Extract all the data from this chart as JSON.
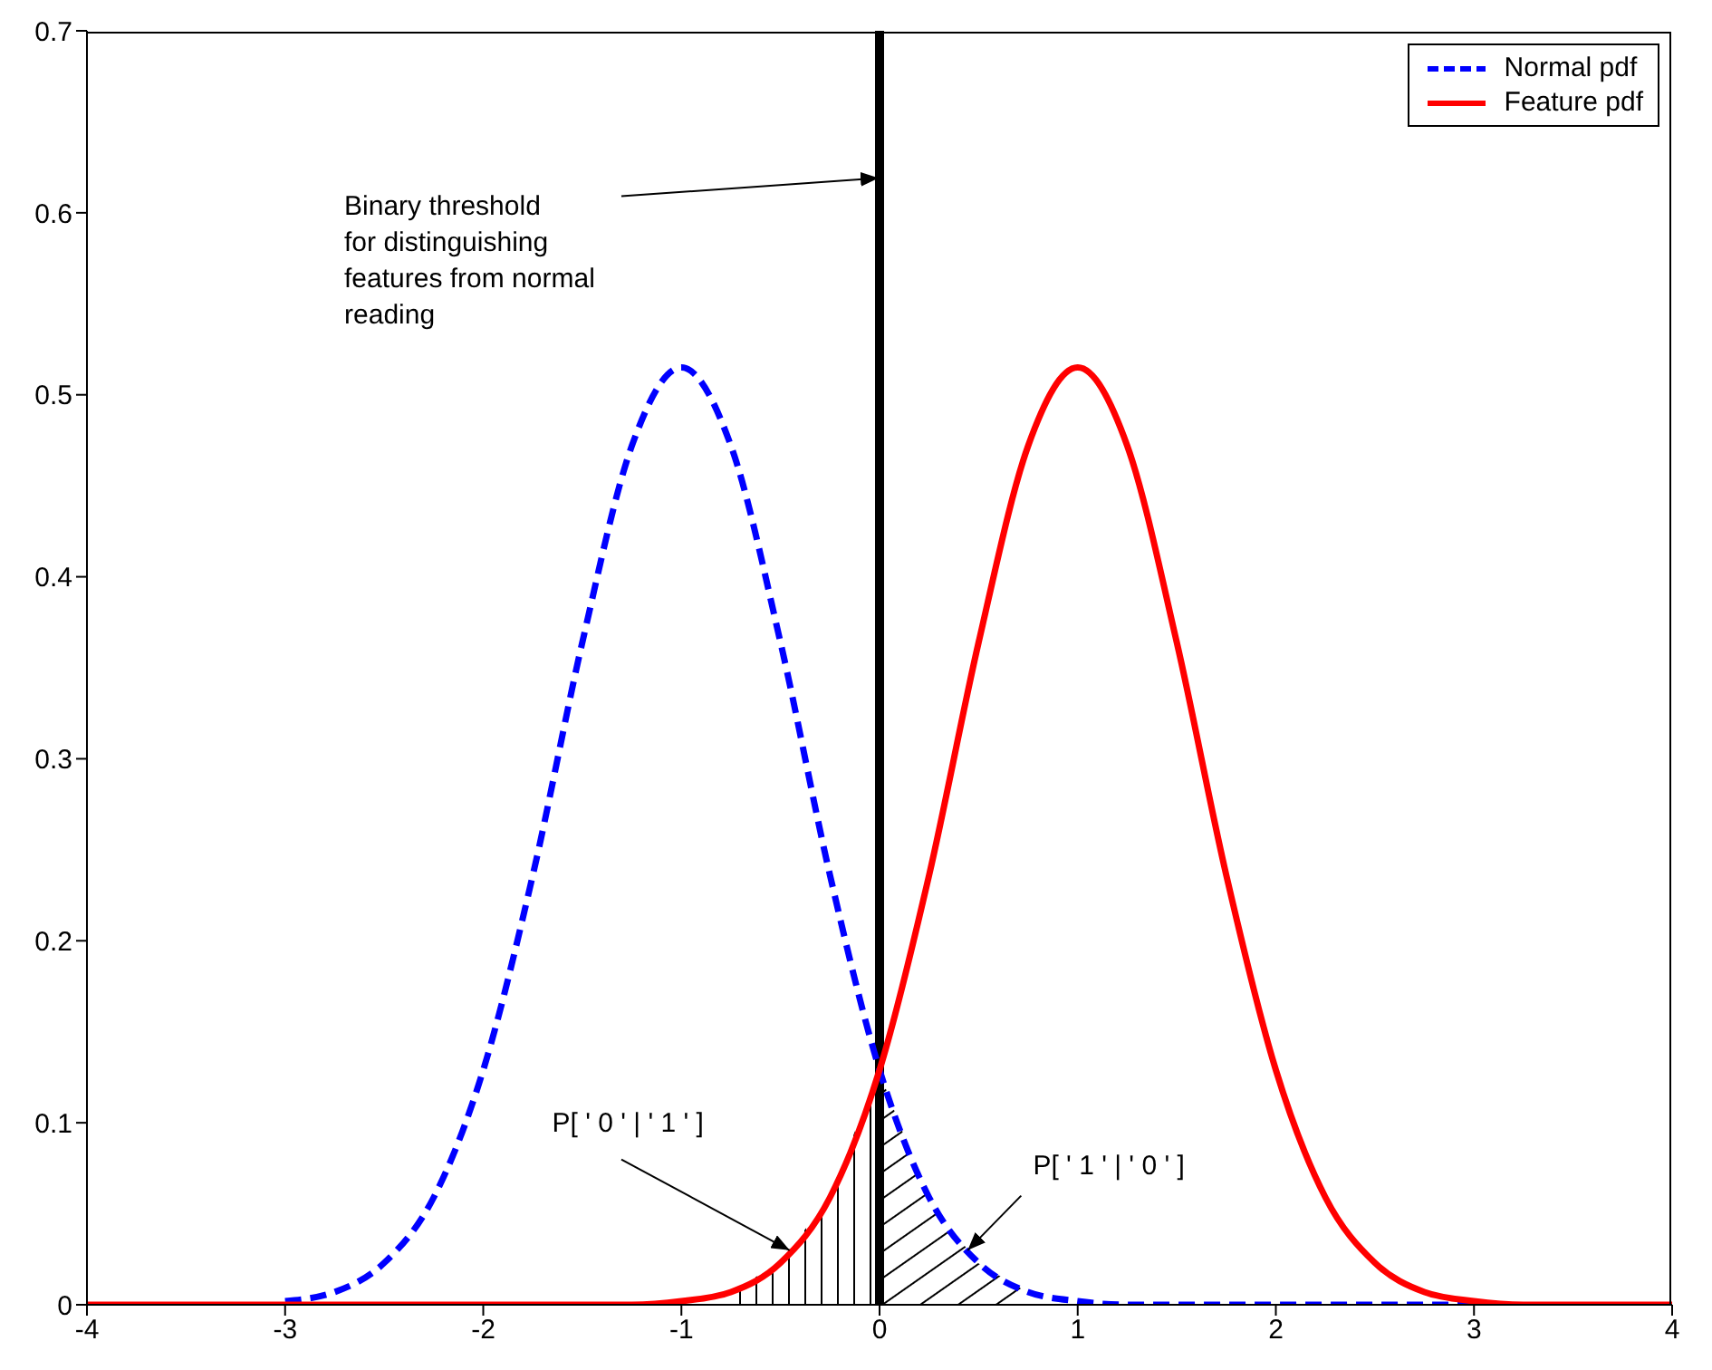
{
  "chart_data": {
    "type": "line",
    "x": [
      -4,
      -3.75,
      -3.5,
      -3.25,
      -3,
      -2.75,
      -2.5,
      -2.25,
      -2,
      -1.75,
      -1.5,
      -1.25,
      -1,
      -0.75,
      -0.5,
      -0.25,
      0,
      0.25,
      0.5,
      0.75,
      1,
      1.25,
      1.5,
      1.75,
      2,
      2.25,
      2.5,
      2.75,
      3,
      3.25,
      3.5,
      3.75,
      4
    ],
    "series": [
      {
        "name": "Normal pdf",
        "color": "#0000ff",
        "line_style": "dashed",
        "values": [
          null,
          null,
          null,
          null,
          0.002,
          0.007,
          0.023,
          0.059,
          0.129,
          0.236,
          0.364,
          0.472,
          0.515,
          0.472,
          0.364,
          0.236,
          0.129,
          0.059,
          0.023,
          0.007,
          0.002,
          0,
          0,
          0,
          0,
          0,
          0,
          0,
          0,
          null,
          null,
          null,
          null
        ]
      },
      {
        "name": "Feature pdf",
        "color": "#ff0000",
        "line_style": "solid",
        "values": [
          0,
          0,
          0,
          0,
          0,
          0,
          0,
          0,
          0,
          0,
          0,
          0,
          0.002,
          0.007,
          0.023,
          0.059,
          0.129,
          0.236,
          0.364,
          0.472,
          0.515,
          0.472,
          0.364,
          0.236,
          0.129,
          0.059,
          0.023,
          0.007,
          0.002,
          0,
          0,
          0,
          0
        ]
      }
    ],
    "xlim": [
      -4,
      4
    ],
    "xticks": [
      -4,
      -3,
      -2,
      -1,
      0,
      1,
      2,
      3,
      4
    ],
    "ylim": [
      0,
      0.7
    ],
    "yticks": [
      0,
      0.1,
      0.2,
      0.3,
      0.4,
      0.5,
      0.6,
      0.7
    ],
    "ref_lines": [
      {
        "axis": "x",
        "value": 0,
        "color": "#000000"
      }
    ],
    "annotations": [
      {
        "text": "Binary threshold\nfor distinguishing\nfeatures from normal\nreading",
        "x": 0,
        "y": 0.62
      },
      {
        "text": "P[ ' 0 ' | ' 1 ' ]",
        "x": -0.45,
        "y": 0.03
      },
      {
        "text": "P[ ' 1 ' | ' 0 ' ]",
        "x": 0.45,
        "y": 0.03
      }
    ],
    "legend": "top right",
    "marker": "none"
  }
}
